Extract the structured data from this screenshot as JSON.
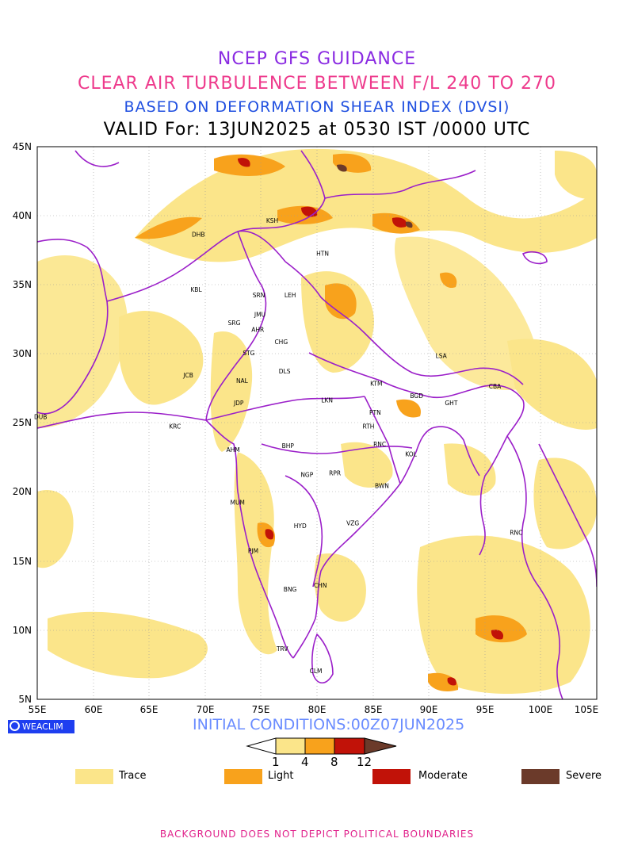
{
  "titles": {
    "line1": "NCEP GFS GUIDANCE",
    "line2": "CLEAR AIR TURBULENCE BETWEEN F/L 240 TO 270",
    "line3": "BASED ON DEFORMATION SHEAR INDEX (DVSI)",
    "line4": "VALID For: 13JUN2025 at 0530 IST /0000 UTC"
  },
  "axes": {
    "lat_labels": [
      "45N",
      "40N",
      "35N",
      "30N",
      "25N",
      "20N",
      "15N",
      "10N",
      "5N"
    ],
    "lon_labels": [
      "55E",
      "60E",
      "65E",
      "70E",
      "75E",
      "80E",
      "85E",
      "90E",
      "95E",
      "100E",
      "105E"
    ],
    "lat_range": [
      5,
      45
    ],
    "lon_range": [
      55,
      105
    ]
  },
  "stations": [
    {
      "code": "DHB",
      "lon": 69.4,
      "lat": 38.5
    },
    {
      "code": "KSH",
      "lon": 76.0,
      "lat": 39.5
    },
    {
      "code": "HTN",
      "lon": 80.5,
      "lat": 37.1
    },
    {
      "code": "KBL",
      "lon": 69.2,
      "lat": 34.5
    },
    {
      "code": "SRN",
      "lon": 74.8,
      "lat": 34.1
    },
    {
      "code": "LEH",
      "lon": 77.6,
      "lat": 34.1
    },
    {
      "code": "JMU",
      "lon": 74.9,
      "lat": 32.7
    },
    {
      "code": "SRG",
      "lon": 72.6,
      "lat": 32.1
    },
    {
      "code": "AHR",
      "lon": 74.7,
      "lat": 31.6
    },
    {
      "code": "CHG",
      "lon": 76.8,
      "lat": 30.7
    },
    {
      "code": "STG",
      "lon": 73.9,
      "lat": 29.9
    },
    {
      "code": "LSA",
      "lon": 91.1,
      "lat": 29.7
    },
    {
      "code": "DLS",
      "lon": 77.1,
      "lat": 28.6
    },
    {
      "code": "JCB",
      "lon": 68.5,
      "lat": 28.3
    },
    {
      "code": "NAL",
      "lon": 73.3,
      "lat": 27.9
    },
    {
      "code": "KTM",
      "lon": 85.3,
      "lat": 27.7
    },
    {
      "code": "CBA",
      "lon": 95.9,
      "lat": 27.5
    },
    {
      "code": "BGD",
      "lon": 88.9,
      "lat": 26.8
    },
    {
      "code": "JDP",
      "lon": 73.0,
      "lat": 26.3
    },
    {
      "code": "LKN",
      "lon": 80.9,
      "lat": 26.5
    },
    {
      "code": "GHT",
      "lon": 92.0,
      "lat": 26.3
    },
    {
      "code": "PTN",
      "lon": 85.2,
      "lat": 25.6
    },
    {
      "code": "DUB",
      "lon": 55.3,
      "lat": 25.3
    },
    {
      "code": "RTH",
      "lon": 84.6,
      "lat": 24.6
    },
    {
      "code": "KRC",
      "lon": 67.3,
      "lat": 24.6
    },
    {
      "code": "RNC",
      "lon": 85.6,
      "lat": 23.3
    },
    {
      "code": "BHP",
      "lon": 77.4,
      "lat": 23.2
    },
    {
      "code": "AHM",
      "lon": 72.5,
      "lat": 22.9
    },
    {
      "code": "KOL",
      "lon": 88.4,
      "lat": 22.6
    },
    {
      "code": "NGP",
      "lon": 79.1,
      "lat": 21.1
    },
    {
      "code": "RPR",
      "lon": 81.6,
      "lat": 21.2
    },
    {
      "code": "BWN",
      "lon": 85.8,
      "lat": 20.3
    },
    {
      "code": "MUM",
      "lon": 72.9,
      "lat": 19.1
    },
    {
      "code": "HYD",
      "lon": 78.5,
      "lat": 17.4
    },
    {
      "code": "VZG",
      "lon": 83.2,
      "lat": 17.6
    },
    {
      "code": "RNC",
      "lon": 97.8,
      "lat": 16.9
    },
    {
      "code": "PJM",
      "lon": 74.3,
      "lat": 15.6
    },
    {
      "code": "CHN",
      "lon": 80.3,
      "lat": 13.1
    },
    {
      "code": "BNG",
      "lon": 77.6,
      "lat": 12.8
    },
    {
      "code": "TRV",
      "lon": 76.9,
      "lat": 8.5
    },
    {
      "code": "CLM",
      "lon": 79.9,
      "lat": 6.9
    }
  ],
  "initial_conditions": "INITIAL CONDITIONS:00Z07JUN2025",
  "brand": "WEACLIM",
  "colorbar": {
    "ticks": [
      "1",
      "4",
      "8",
      "12"
    ],
    "colors": [
      "#fff",
      "#fbe58a",
      "#f8a21c",
      "#c11208",
      "#6b3a2a"
    ]
  },
  "legend": [
    {
      "label": "Trace",
      "color": "#fbe58a"
    },
    {
      "label": "Light",
      "color": "#f8a21c"
    },
    {
      "label": "Moderate",
      "color": "#c11208"
    },
    {
      "label": "Severe",
      "color": "#6b3a2a"
    }
  ],
  "disclaimer": "BACKGROUND DOES NOT DEPICT POLITICAL BOUNDARIES"
}
